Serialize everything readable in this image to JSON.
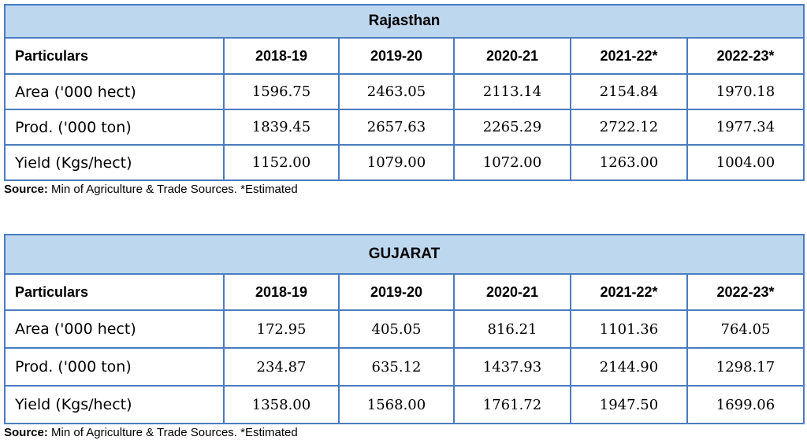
{
  "tables": [
    {
      "title": "Rajasthan",
      "header": [
        "Particulars",
        "2018-19",
        "2019-20",
        "2020-21",
        "2021-22*",
        "2022-23*"
      ],
      "rows": [
        {
          "label": "Area ('000 hect)",
          "values": [
            "1596.75",
            "2463.05",
            "2113.14",
            "2154.84",
            "1970.18"
          ]
        },
        {
          "label": "Prod. ('000 ton)",
          "values": [
            "1839.45",
            "2657.63",
            "2265.29",
            "2722.12",
            "1977.34"
          ]
        },
        {
          "label": "Yield (Kgs/hect)",
          "values": [
            "1152.00",
            "1079.00",
            "1072.00",
            "1263.00",
            "1004.00"
          ]
        }
      ],
      "source_label": "Source:",
      "source_text": " Min of Agriculture & Trade Sources. *Estimated"
    },
    {
      "title": "GUJARAT",
      "header": [
        "Particulars",
        "2018-19",
        "2019-20",
        "2020-21",
        "2021-22*",
        "2022-23*"
      ],
      "rows": [
        {
          "label": "Area ('000 hect)",
          "values": [
            "172.95",
            "405.05",
            "816.21",
            "1101.36",
            "764.05"
          ]
        },
        {
          "label": "Prod. ('000 ton)",
          "values": [
            "234.87",
            "635.12",
            "1437.93",
            "2144.90",
            "1298.17"
          ]
        },
        {
          "label": "Yield (Kgs/hect)",
          "values": [
            "1358.00",
            "1568.00",
            "1761.72",
            "1947.50",
            "1699.06"
          ]
        }
      ],
      "source_label": "Source:",
      "source_text": " Min of Agriculture & Trade Sources. *Estimated"
    }
  ]
}
